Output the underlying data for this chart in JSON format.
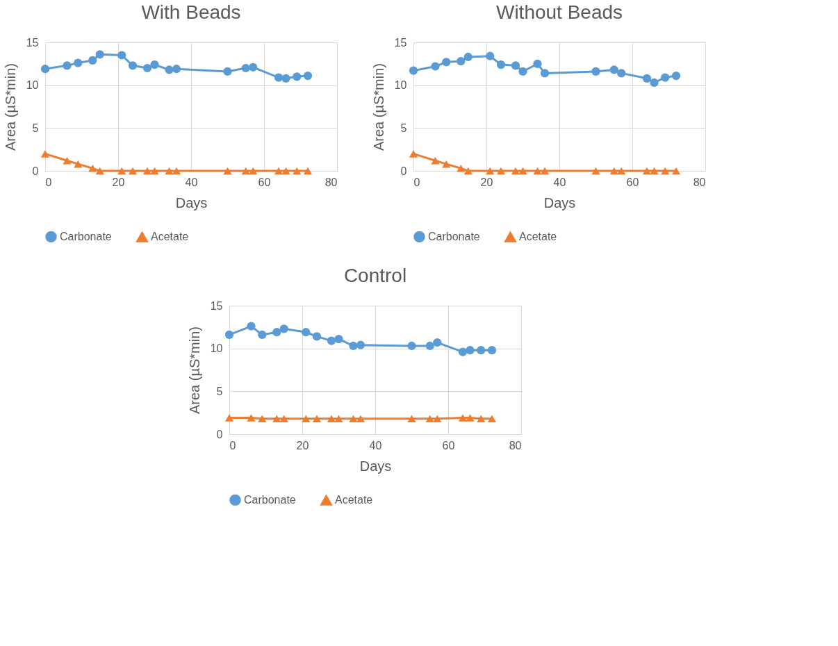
{
  "chart_data": [
    {
      "type": "line",
      "title": "With Beads",
      "xlabel": "Days",
      "ylabel": "Area (µS*min)",
      "xlim": [
        0,
        80
      ],
      "xticks": [
        0,
        20,
        40,
        60,
        80
      ],
      "ylim": [
        0,
        15
      ],
      "yticks": [
        0,
        5,
        10,
        15
      ],
      "grid": true,
      "legend": "bottom",
      "line_style": "solid",
      "x": [
        0,
        6,
        9,
        13,
        15,
        21,
        24,
        28,
        30,
        34,
        36,
        50,
        55,
        57,
        64,
        66,
        69,
        72
      ],
      "series": [
        {
          "name": "Carbonate",
          "color": "#5b9bd5",
          "marker": "circle",
          "values": [
            11.9,
            12.3,
            12.6,
            12.9,
            13.6,
            13.5,
            12.3,
            12.0,
            12.4,
            11.8,
            11.9,
            11.6,
            12.0,
            12.1,
            10.9,
            10.8,
            11.0,
            11.1
          ]
        },
        {
          "name": "Acetate",
          "color": "#ed7d31",
          "marker": "triangle",
          "values": [
            2.0,
            1.2,
            0.8,
            0.3,
            0,
            0,
            0,
            0,
            0,
            0,
            0,
            0,
            0,
            0,
            0,
            0,
            0,
            0
          ]
        }
      ]
    },
    {
      "type": "line",
      "title": "Without Beads",
      "xlabel": "Days",
      "ylabel": "Area (µS*min)",
      "xlim": [
        0,
        80
      ],
      "xticks": [
        0,
        20,
        40,
        60,
        80
      ],
      "ylim": [
        0,
        15
      ],
      "yticks": [
        0,
        5,
        10,
        15
      ],
      "grid": true,
      "legend": "bottom",
      "line_style": "solid",
      "x": [
        0,
        6,
        9,
        13,
        15,
        21,
        24,
        28,
        30,
        34,
        36,
        50,
        55,
        57,
        64,
        66,
        69,
        72
      ],
      "series": [
        {
          "name": "Carbonate",
          "color": "#5b9bd5",
          "marker": "circle",
          "values": [
            11.7,
            12.2,
            12.7,
            12.8,
            13.3,
            13.4,
            12.4,
            12.3,
            11.6,
            12.5,
            11.4,
            11.6,
            11.8,
            11.4,
            10.8,
            10.3,
            10.9,
            11.1
          ]
        },
        {
          "name": "Acetate",
          "color": "#ed7d31",
          "marker": "triangle",
          "values": [
            2.0,
            1.2,
            0.8,
            0.3,
            0,
            0,
            0,
            0,
            0,
            0,
            0,
            0,
            0,
            0,
            0,
            0,
            0,
            0
          ]
        }
      ]
    },
    {
      "type": "line",
      "title": "Control",
      "xlabel": "Days",
      "ylabel": "Area (µS*min)",
      "xlim": [
        0,
        80
      ],
      "xticks": [
        0,
        20,
        40,
        60,
        80
      ],
      "ylim": [
        0,
        15
      ],
      "yticks": [
        0,
        5,
        10,
        15
      ],
      "grid": true,
      "legend": "bottom",
      "line_style": "solid",
      "x": [
        0,
        6,
        9,
        13,
        15,
        21,
        24,
        28,
        30,
        34,
        36,
        50,
        55,
        57,
        64,
        66,
        69,
        72
      ],
      "series": [
        {
          "name": "Carbonate",
          "color": "#5b9bd5",
          "marker": "circle",
          "values": [
            11.6,
            12.6,
            11.6,
            11.9,
            12.3,
            11.9,
            11.4,
            10.9,
            11.1,
            10.3,
            10.4,
            10.3,
            10.3,
            10.7,
            9.6,
            9.8,
            9.8,
            9.8
          ]
        },
        {
          "name": "Acetate",
          "color": "#ed7d31",
          "marker": "triangle",
          "values": [
            1.9,
            1.9,
            1.8,
            1.8,
            1.8,
            1.8,
            1.8,
            1.8,
            1.8,
            1.8,
            1.8,
            1.8,
            1.8,
            1.8,
            1.9,
            1.9,
            1.8,
            1.8
          ]
        }
      ]
    }
  ]
}
